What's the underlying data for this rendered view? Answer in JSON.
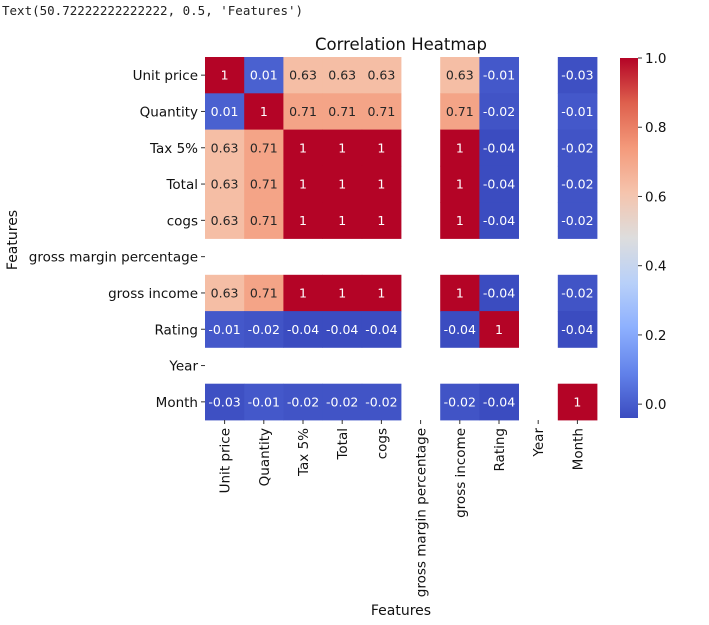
{
  "output": {
    "text": "Text(50.72222222222222, 0.5, 'Features')"
  },
  "colors": {
    "low": "#3b4cc0",
    "mid": "#dddddd",
    "high": "#b40426"
  },
  "chart_data": {
    "type": "heatmap",
    "title": "Correlation Heatmap",
    "xlabel": "Features",
    "ylabel": "Features",
    "colormap": "coolwarm",
    "vmin": -0.04,
    "vmax": 1.0,
    "colorbar_ticks": [
      "0.0",
      "0.2",
      "0.4",
      "0.6",
      "0.8",
      "1.0"
    ],
    "colorbar_tick_values": [
      0.0,
      0.2,
      0.4,
      0.6,
      0.8,
      1.0
    ],
    "x_labels": [
      "Unit price",
      "Quantity",
      "Tax 5%",
      "Total",
      "cogs",
      "gross margin percentage",
      "gross income",
      "Rating",
      "Year",
      "Month"
    ],
    "y_labels": [
      "Unit price",
      "Quantity",
      "Tax 5%",
      "Total",
      "cogs",
      "gross margin percentage",
      "gross income",
      "Rating",
      "Year",
      "Month"
    ],
    "values": [
      [
        1,
        0.01,
        0.63,
        0.63,
        0.63,
        null,
        0.63,
        -0.01,
        null,
        -0.03
      ],
      [
        0.01,
        1,
        0.71,
        0.71,
        0.71,
        null,
        0.71,
        -0.02,
        null,
        -0.01
      ],
      [
        0.63,
        0.71,
        1,
        1,
        1,
        null,
        1,
        -0.04,
        null,
        -0.02
      ],
      [
        0.63,
        0.71,
        1,
        1,
        1,
        null,
        1,
        -0.04,
        null,
        -0.02
      ],
      [
        0.63,
        0.71,
        1,
        1,
        1,
        null,
        1,
        -0.04,
        null,
        -0.02
      ],
      [
        null,
        null,
        null,
        null,
        null,
        null,
        null,
        null,
        null,
        null
      ],
      [
        0.63,
        0.71,
        1,
        1,
        1,
        null,
        1,
        -0.04,
        null,
        -0.02
      ],
      [
        -0.01,
        -0.02,
        -0.04,
        -0.04,
        -0.04,
        null,
        -0.04,
        1,
        null,
        -0.04
      ],
      [
        null,
        null,
        null,
        null,
        null,
        null,
        null,
        null,
        null,
        null
      ],
      [
        -0.03,
        -0.01,
        -0.02,
        -0.02,
        -0.02,
        null,
        -0.02,
        -0.04,
        null,
        1
      ]
    ],
    "cell_labels": [
      [
        "1",
        "0.01",
        "0.63",
        "0.63",
        "0.63",
        "",
        "0.63",
        "-0.01",
        "",
        "-0.03"
      ],
      [
        "0.01",
        "1",
        "0.71",
        "0.71",
        "0.71",
        "",
        "0.71",
        "-0.02",
        "",
        "-0.01"
      ],
      [
        "0.63",
        "0.71",
        "1",
        "1",
        "1",
        "",
        "1",
        "-0.04",
        "",
        "-0.02"
      ],
      [
        "0.63",
        "0.71",
        "1",
        "1",
        "1",
        "",
        "1",
        "-0.04",
        "",
        "-0.02"
      ],
      [
        "0.63",
        "0.71",
        "1",
        "1",
        "1",
        "",
        "1",
        "-0.04",
        "",
        "-0.02"
      ],
      [
        "",
        "",
        "",
        "",
        "",
        "",
        "",
        "",
        "",
        ""
      ],
      [
        "0.63",
        "0.71",
        "1",
        "1",
        "1",
        "",
        "1",
        "-0.04",
        "",
        "-0.02"
      ],
      [
        "-0.01",
        "-0.02",
        "-0.04",
        "-0.04",
        "-0.04",
        "",
        "-0.04",
        "1",
        "",
        "-0.04"
      ],
      [
        "",
        "",
        "",
        "",
        "",
        "",
        "",
        "",
        "",
        ""
      ],
      [
        "-0.03",
        "-0.01",
        "-0.02",
        "-0.02",
        "-0.02",
        "",
        "-0.02",
        "-0.04",
        "",
        "1"
      ]
    ]
  }
}
